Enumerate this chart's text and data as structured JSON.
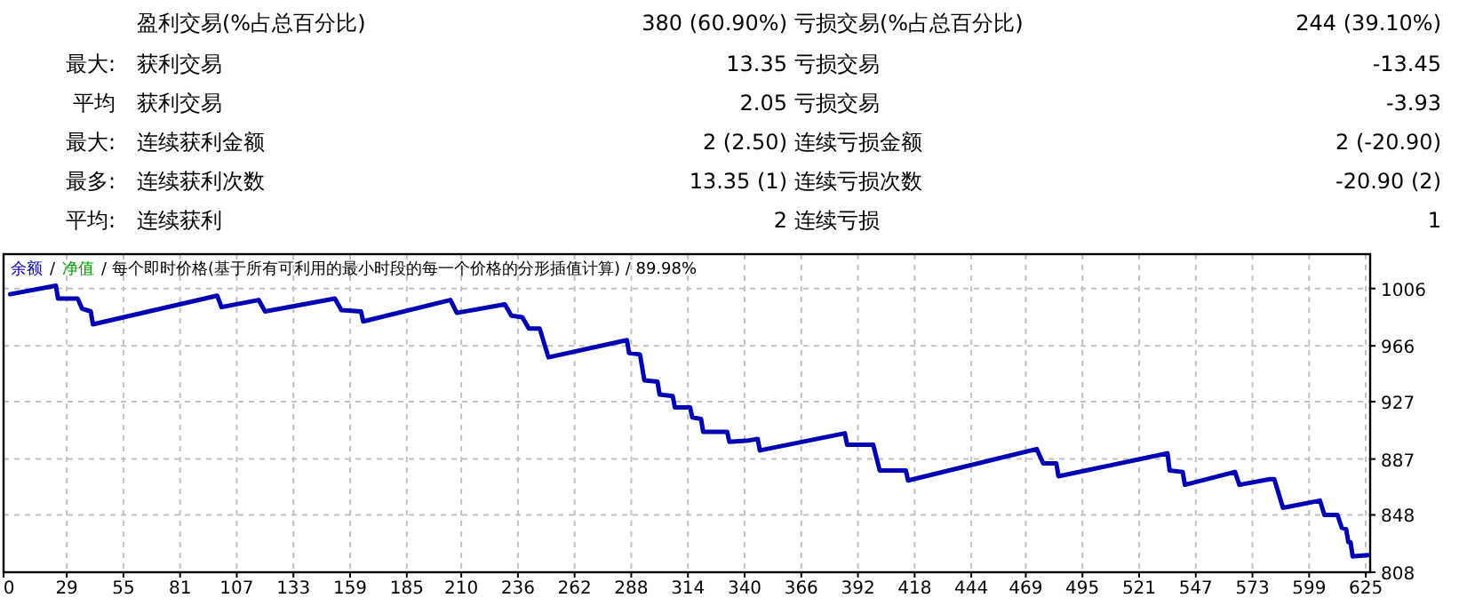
{
  "chart_data": [
    {
      "type": "other",
      "annotations": [
        null,
        "盈利交易(%占总百分比)",
        "380 (60.90%)",
        "亏损交易(%占总百分比)",
        "244 (39.10%)",
        "最大:",
        "获利交易",
        "13.35",
        "亏损交易",
        "-13.45",
        "平均",
        "获利交易",
        "2.05",
        "亏损交易",
        "-3.93",
        "最大:",
        "连续获利金额",
        "2 (2.50)",
        "连续亏损金额",
        "2 (-20.90)",
        "最多:",
        "连续获利次数",
        "13.35 (1)",
        "连续亏损次数",
        "-20.90 (2)",
        "平均:",
        "连续获利",
        "2",
        "连续亏损",
        "1"
      ]
    },
    {
      "type": "line",
      "annotations": [
        "/"
      ],
      "subtitle": "/ 每个即时价格(基于所有可利用的最小时段的每一个价格的分形插值计算) / 89.98%",
      "xlim": [
        0,
        627
      ],
      "xticks": [
        0,
        29,
        55,
        81,
        107,
        133,
        159,
        185,
        210,
        236,
        262,
        288,
        314,
        340,
        366,
        392,
        418,
        444,
        469,
        495,
        521,
        547,
        573,
        599,
        625
      ],
      "ylim": [
        808,
        1030
      ],
      "yticks": [
        808,
        848,
        887,
        927,
        966,
        1006
      ],
      "grid": true,
      "legend": "top left",
      "series": [
        {
          "name": "余额",
          "color": "#0000b4",
          "x": [
            3,
            24,
            25,
            34,
            36,
            40,
            41,
            98,
            100,
            117,
            120,
            152,
            155,
            164,
            165,
            205,
            208,
            230,
            233,
            238,
            241,
            246,
            250,
            286,
            287,
            292,
            294,
            300,
            301,
            307,
            308,
            315,
            316,
            320,
            321,
            332,
            333,
            342,
            346,
            347,
            386,
            387,
            399,
            402,
            414,
            415,
            474,
            477,
            483,
            484,
            534,
            535,
            541,
            542,
            565,
            567,
            581,
            583,
            587,
            604,
            606,
            612,
            614,
            616,
            617,
            618,
            619,
            626
          ],
          "values": [
            1002,
            1008,
            999,
            999,
            992,
            990,
            981,
            1001,
            993,
            998,
            990,
            999,
            991,
            990,
            983,
            998,
            989,
            995,
            987,
            986,
            978,
            978,
            958,
            970,
            961,
            960,
            942,
            941,
            932,
            931,
            923,
            923,
            916,
            915,
            906,
            906,
            899,
            900,
            901,
            893,
            905,
            897,
            897,
            879,
            879,
            872,
            894,
            884,
            884,
            875,
            891,
            879,
            878,
            869,
            878,
            869,
            873,
            873,
            853,
            858,
            848,
            848,
            839,
            838,
            829,
            829,
            819,
            820
          ]
        },
        {
          "name": "净值",
          "color": "#00a000"
        }
      ]
    }
  ]
}
